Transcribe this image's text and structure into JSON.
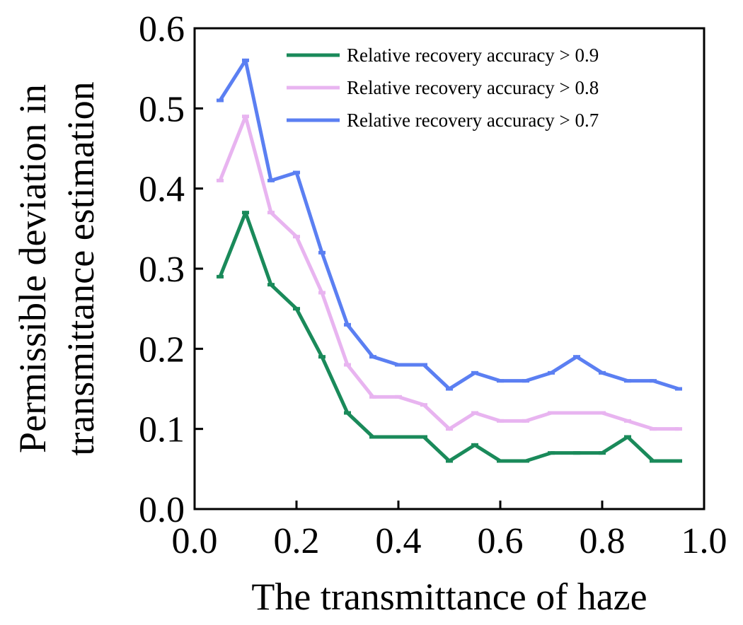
{
  "chart_data": {
    "type": "line",
    "title": "",
    "xlabel": "The transmittance of haze",
    "ylabel_lines": [
      "Permissible deviation in",
      "transmittance estimation"
    ],
    "xlim": [
      0.0,
      1.0
    ],
    "ylim": [
      0.0,
      0.6
    ],
    "xticks": [
      "0.0",
      "0.2",
      "0.4",
      "0.6",
      "0.8",
      "1.0"
    ],
    "yticks": [
      "0.0",
      "0.1",
      "0.2",
      "0.3",
      "0.4",
      "0.5",
      "0.6"
    ],
    "grid": false,
    "legend_position": "top-right",
    "x": [
      0.05,
      0.1,
      0.15,
      0.2,
      0.25,
      0.3,
      0.35,
      0.4,
      0.45,
      0.5,
      0.55,
      0.6,
      0.65,
      0.7,
      0.75,
      0.8,
      0.85,
      0.9,
      0.95
    ],
    "series": [
      {
        "name": "Relative recovery accuracy > 0.9",
        "color": "#1a8a5a",
        "values": [
          0.29,
          0.37,
          0.28,
          0.25,
          0.19,
          0.12,
          0.09,
          0.09,
          0.09,
          0.06,
          0.08,
          0.06,
          0.06,
          0.07,
          0.07,
          0.07,
          0.09,
          0.06,
          0.06
        ]
      },
      {
        "name": "Relative recovery accuracy > 0.8",
        "color": "#e8b4f0",
        "values": [
          0.41,
          0.49,
          0.37,
          0.34,
          0.27,
          0.18,
          0.14,
          0.14,
          0.13,
          0.1,
          0.12,
          0.11,
          0.11,
          0.12,
          0.12,
          0.12,
          0.11,
          0.1,
          0.1
        ]
      },
      {
        "name": "Relative recovery accuracy > 0.7",
        "color": "#5b7ff2",
        "values": [
          0.51,
          0.56,
          0.41,
          0.42,
          0.32,
          0.23,
          0.19,
          0.18,
          0.18,
          0.15,
          0.17,
          0.16,
          0.16,
          0.17,
          0.19,
          0.17,
          0.16,
          0.16,
          0.15
        ]
      }
    ]
  }
}
